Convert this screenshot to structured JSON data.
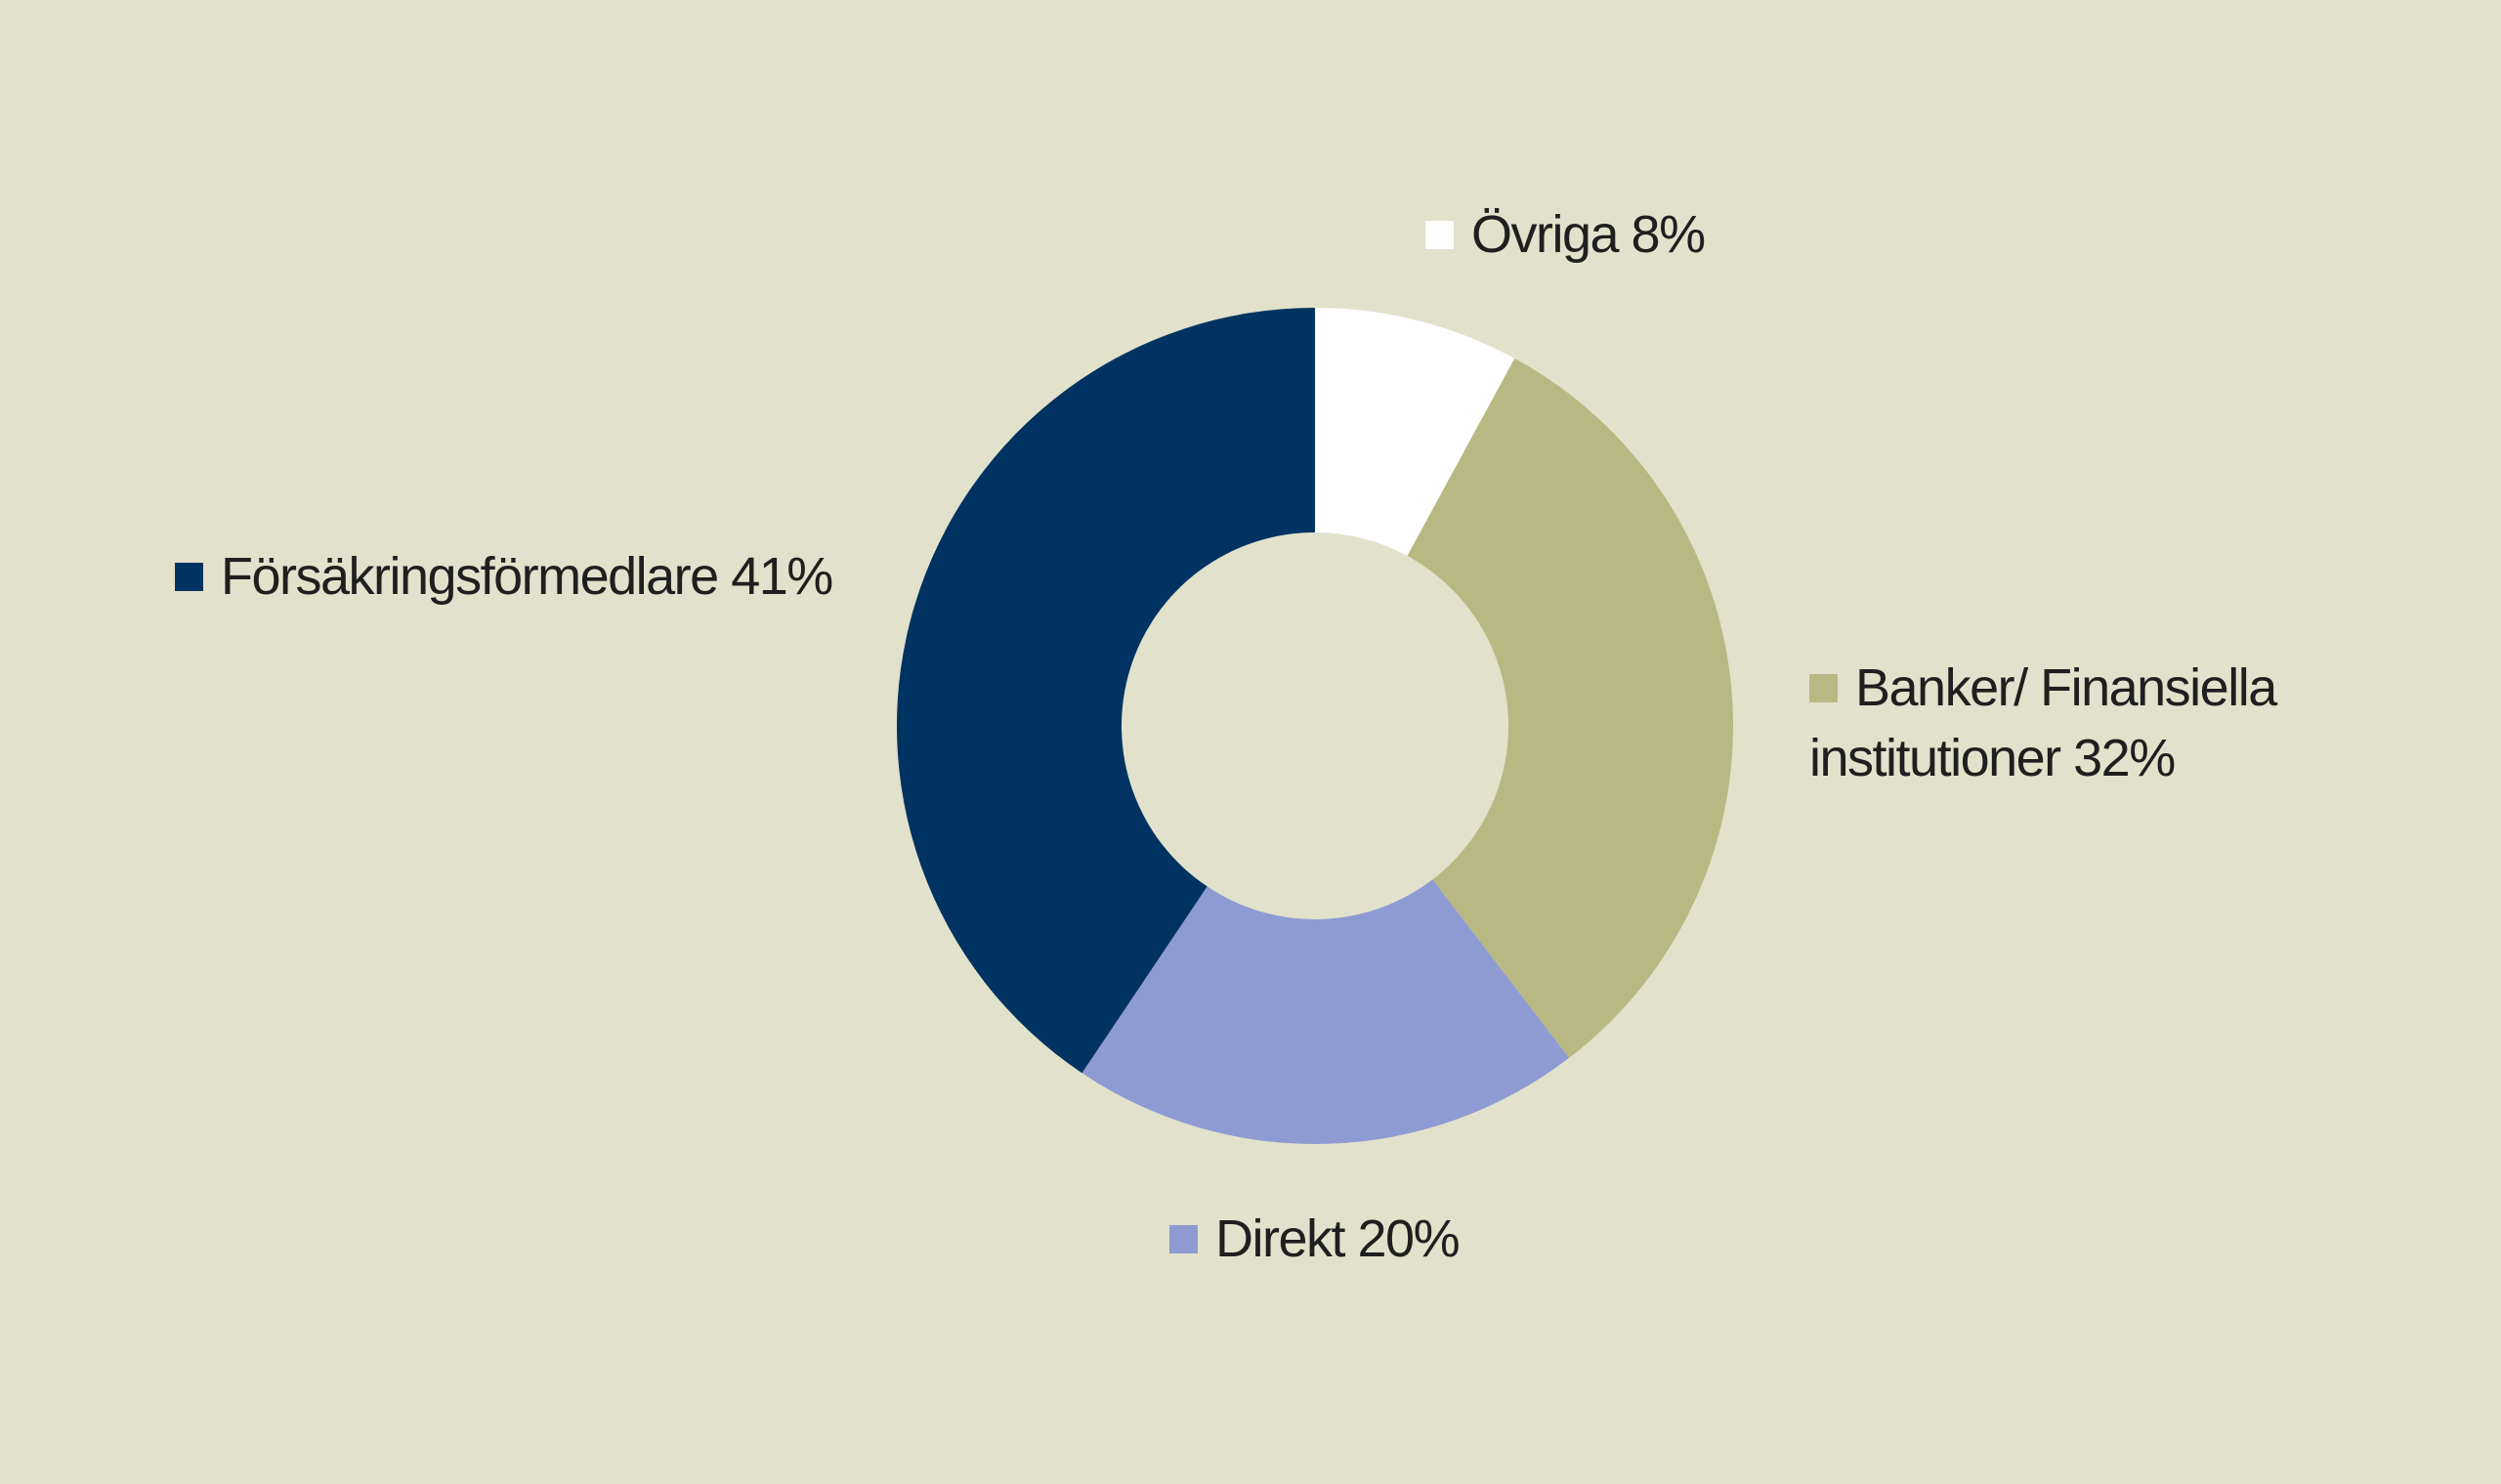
{
  "colors": {
    "background": "#e2e1cb",
    "text": "#1f1f1f"
  },
  "chart_data": {
    "type": "pie",
    "variant": "donut",
    "title": "",
    "legend_placement": "around chart",
    "slices": [
      {
        "name": "Övriga",
        "value": 8,
        "label": "Övriga 8%",
        "color": "#ffffff"
      },
      {
        "name": "Banker/ Finansiella institutioner",
        "value": 32,
        "label_line1": "Banker/ Finansiella",
        "label_line2": "institutioner 32%",
        "color": "#b8b982"
      },
      {
        "name": "Direkt",
        "value": 20,
        "label": "Direkt 20%",
        "color": "#8e9bd3"
      },
      {
        "name": "Försäkringsförmedlare",
        "value": 41,
        "label": "Försäkringsförmedlare 41%",
        "color": "#003361"
      }
    ]
  }
}
